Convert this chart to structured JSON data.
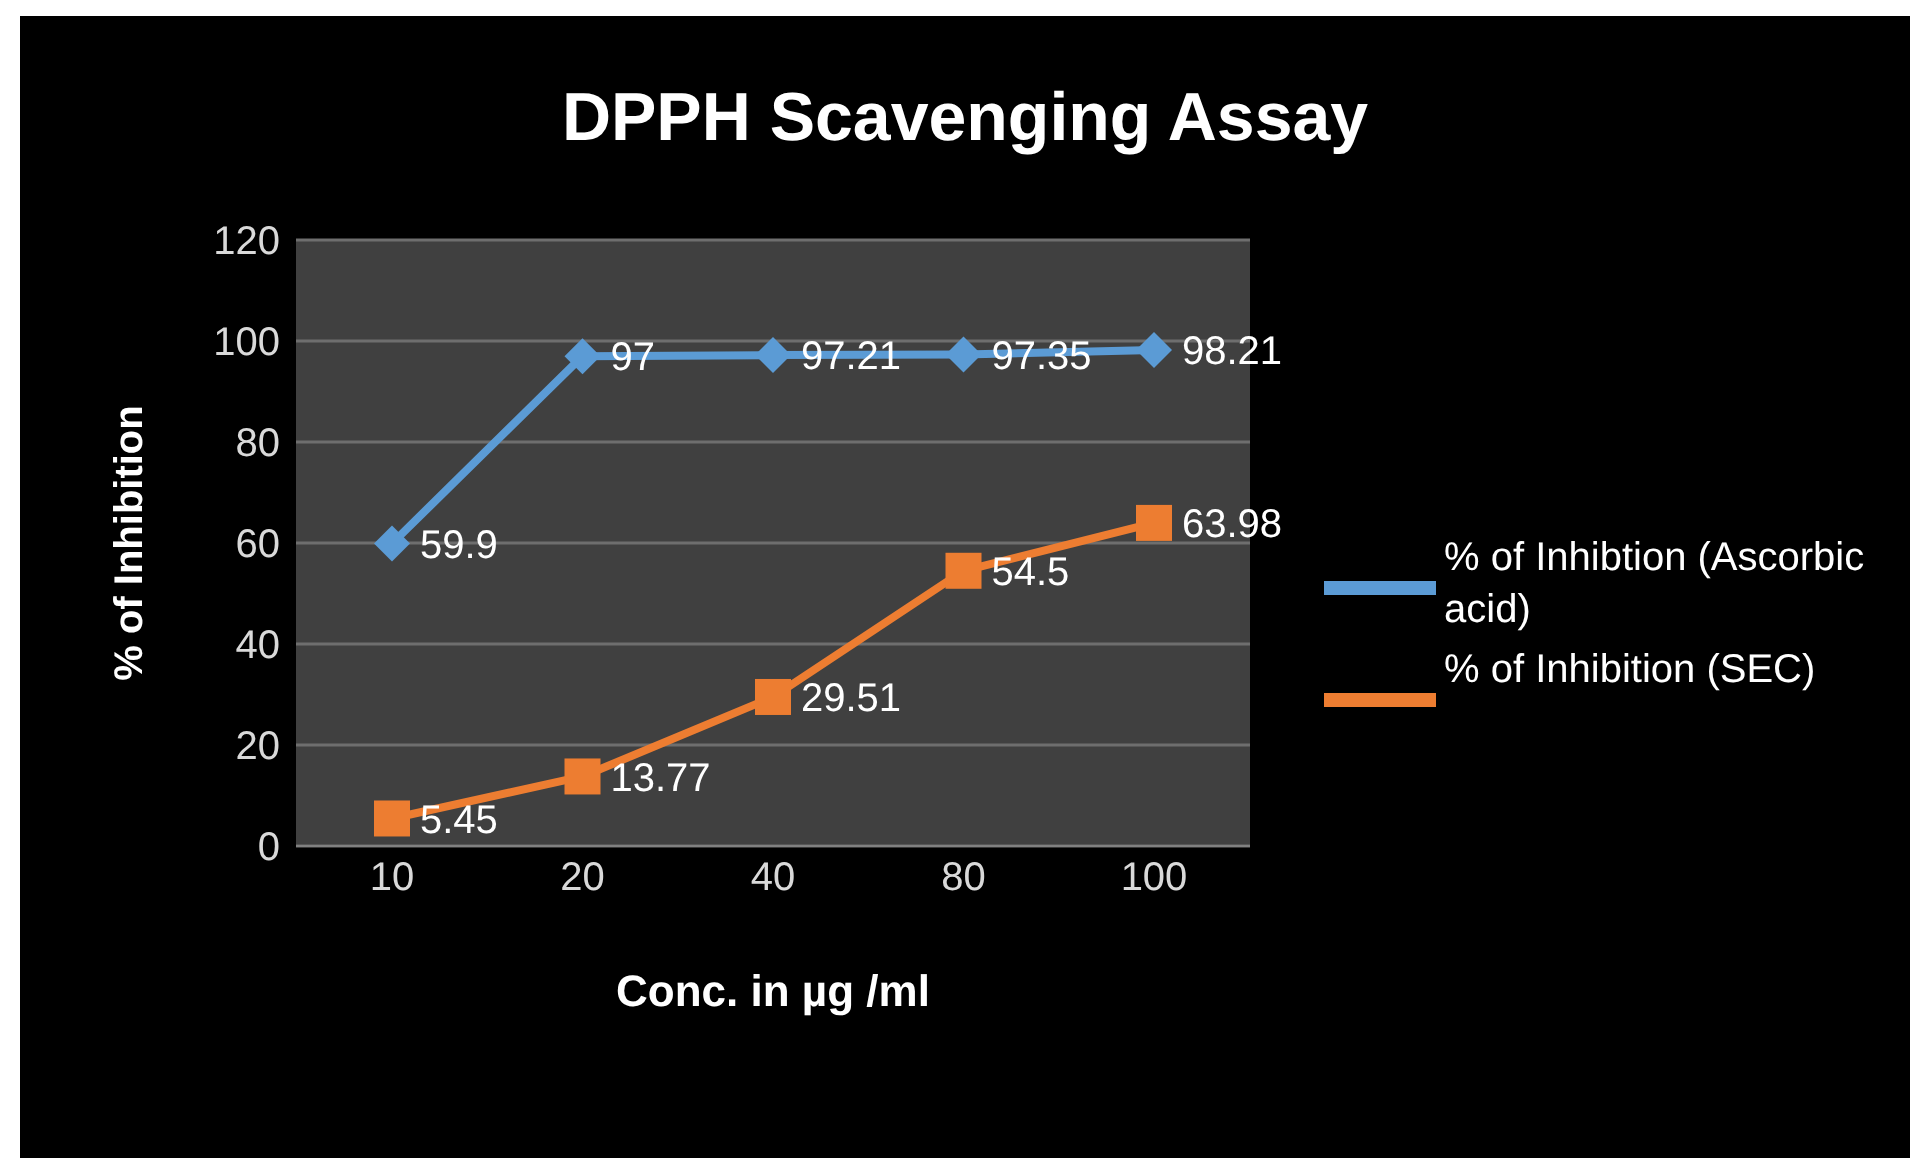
{
  "chart_data": {
    "type": "line",
    "title": "DPPH Scavenging Assay",
    "xlabel": "Conc. in µg /ml",
    "ylabel": "% of Inhibition",
    "categories": [
      "10",
      "20",
      "40",
      "80",
      "100"
    ],
    "series": [
      {
        "name": "% of Inhibtion (Ascorbic acid)",
        "color": "#5b9bd5",
        "marker": "diamond",
        "values": [
          59.9,
          97,
          97.21,
          97.35,
          98.21
        ]
      },
      {
        "name": "% of Inhibition (SEC)",
        "color": "#ed7d31",
        "marker": "square",
        "values": [
          5.45,
          13.77,
          29.51,
          54.5,
          63.98
        ]
      }
    ],
    "ylim": [
      0,
      120
    ],
    "yticks": [
      0,
      20,
      40,
      60,
      80,
      100,
      120
    ],
    "grid": "y",
    "legend": "right",
    "data_labels": true,
    "line_style": "solid"
  }
}
